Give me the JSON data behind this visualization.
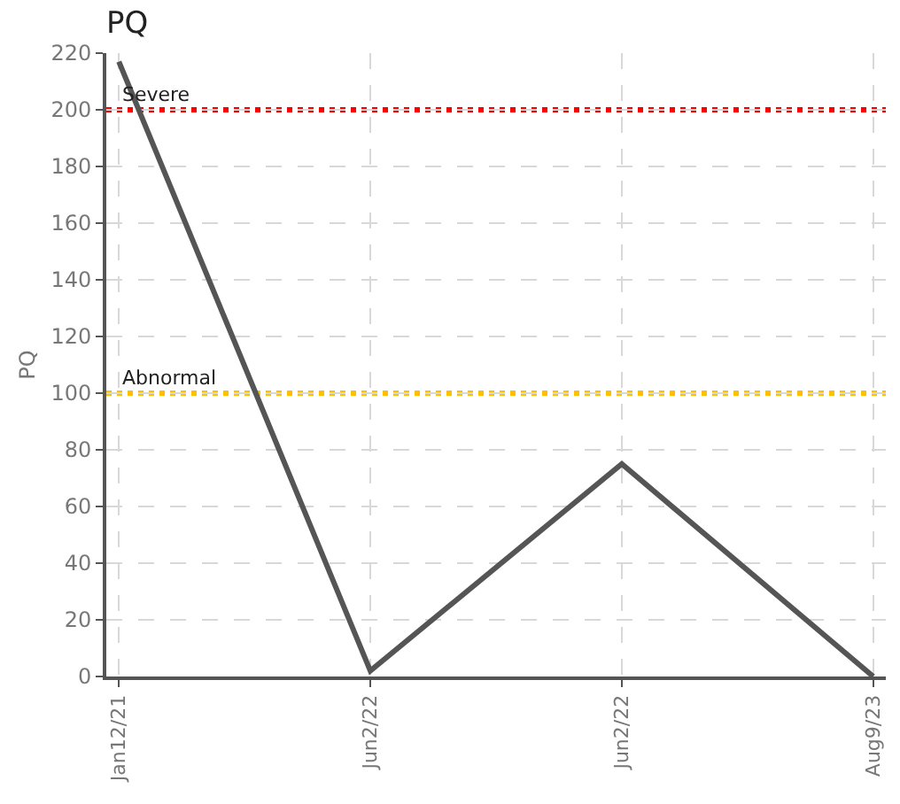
{
  "chart_data": {
    "type": "line",
    "title": "PQ",
    "ylabel": "PQ",
    "categories": [
      "Jan12/21",
      "Jun2/22",
      "Jun2/22",
      "Aug9/23"
    ],
    "series": [
      {
        "color": "#555555",
        "values": [
          217,
          2,
          75,
          0
        ]
      }
    ],
    "ylim": [
      0,
      220
    ],
    "yticks": [
      0,
      20,
      40,
      60,
      80,
      100,
      120,
      140,
      160,
      180,
      200,
      220
    ],
    "ref_lines": [
      {
        "axis": "y",
        "value": 200,
        "label": "Severe",
        "color": "#ff0000",
        "line_style": "dotted"
      },
      {
        "axis": "y",
        "value": 100,
        "label": "Abnormal",
        "color": "#ffc000",
        "line_style": "dotted"
      }
    ],
    "grid": true,
    "marker": "none",
    "line_style": "solid"
  }
}
